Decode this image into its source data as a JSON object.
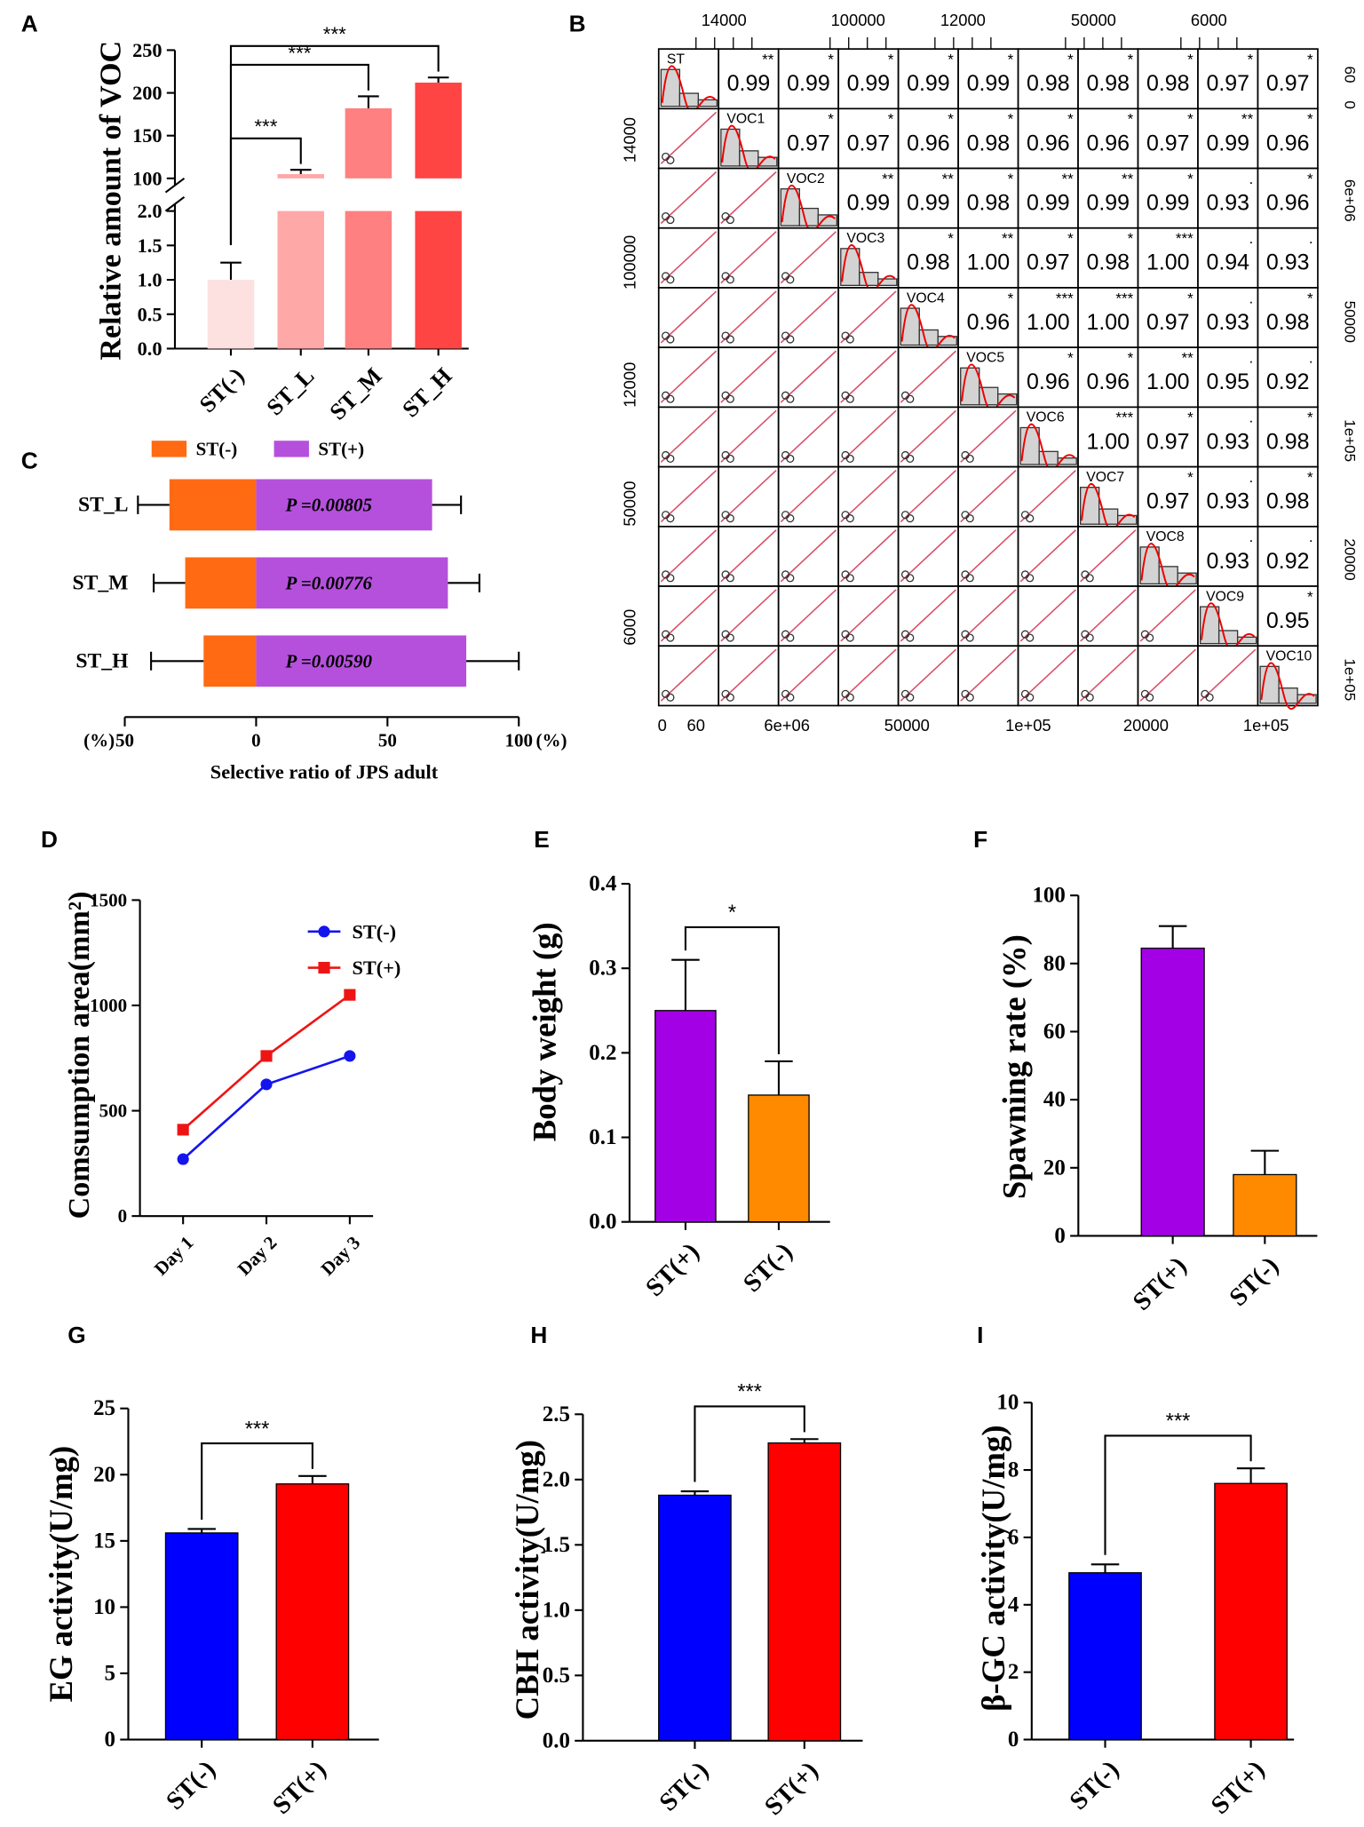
{
  "chart_data": [
    {
      "panel": "A",
      "type": "bar",
      "ylabel": "Relative amount of VOC",
      "categories": [
        "ST(-)",
        "ST_L",
        "ST_M",
        "ST_H"
      ],
      "values": [
        1.0,
        105,
        182,
        212
      ],
      "errors": [
        0.25,
        5,
        14,
        6
      ],
      "colors": [
        "#fde0e0",
        "#ffa8a8",
        "#ff8080",
        "#ff4444"
      ],
      "ylim": [
        0,
        250
      ],
      "axis_break": [
        2,
        100
      ],
      "yticks": [
        {
          "value": 0,
          "label": "0.0"
        },
        0.5,
        {
          "value": 1,
          "label": "1.0"
        },
        1.5,
        {
          "value": 2,
          "label": "2.0"
        },
        100,
        150,
        200,
        250
      ],
      "significance": [
        "***",
        "***",
        "***"
      ]
    },
    {
      "panel": "B",
      "type": "correlation_matrix",
      "variables": [
        "ST",
        "VOC1",
        "VOC2",
        "VOC3",
        "VOC4",
        "VOC5",
        "VOC6",
        "VOC7",
        "VOC8",
        "VOC9",
        "VOC10"
      ],
      "correlations": [
        [
          "0.99",
          "0.99",
          "0.99",
          "0.99",
          "0.99",
          "0.98",
          "0.98",
          "0.98",
          "0.97",
          "0.97"
        ],
        [
          "0.97",
          "0.97",
          "0.96",
          "0.98",
          "0.96",
          "0.96",
          "0.97",
          "0.99",
          "0.96"
        ],
        [
          "0.99",
          "0.99",
          "0.98",
          "0.99",
          "0.99",
          "0.99",
          "0.93",
          "0.96"
        ],
        [
          "0.98",
          "1.00",
          "0.97",
          "0.98",
          "1.00",
          "0.94",
          "0.93"
        ],
        [
          "0.96",
          "1.00",
          "1.00",
          "0.97",
          "0.93",
          "0.98"
        ],
        [
          "0.96",
          "0.96",
          "1.00",
          "0.95",
          "0.92"
        ],
        [
          "1.00",
          "0.97",
          "0.93",
          "0.98"
        ],
        [
          "0.97",
          "0.93",
          "0.98"
        ],
        [
          "0.93",
          "0.92"
        ],
        [
          "0.95"
        ]
      ],
      "significance": [
        [
          "**",
          "*",
          "*",
          "*",
          "*",
          "*",
          "*",
          "*",
          "*",
          "*"
        ],
        [
          "*",
          "*",
          "*",
          "*",
          "*",
          "*",
          "*",
          "**",
          "*"
        ],
        [
          "**",
          "**",
          "*",
          "**",
          "**",
          "*",
          ".",
          "*"
        ],
        [
          "*",
          "**",
          "*",
          "*",
          "***",
          ".",
          "."
        ],
        [
          "*",
          "***",
          "***",
          "*",
          ".",
          "*"
        ],
        [
          "*",
          "*",
          "**",
          ".",
          "."
        ],
        [
          "***",
          "*",
          ".",
          "*"
        ],
        [
          "*",
          ".",
          "*"
        ],
        [
          ".",
          "."
        ],
        [
          "*"
        ]
      ],
      "top_labels": [
        "14000",
        "100000",
        "12000",
        "50000",
        "6000"
      ],
      "left_labels": [
        "14000",
        "100000",
        "12000",
        "50000",
        "6000"
      ],
      "right_labels": [
        "60",
        "0",
        "6e+06",
        "50000",
        "1e+05",
        "20000",
        "1e+05"
      ],
      "bottom_labels": [
        "0",
        "60",
        "6e+06",
        "50000",
        "1e+05",
        "20000",
        "1e+05"
      ]
    },
    {
      "panel": "C",
      "type": "diverging_bar",
      "xlabel": "Selective ratio of JPS adult",
      "categories": [
        "ST_L",
        "ST_M",
        "ST_H"
      ],
      "series": [
        {
          "name": "ST(-)",
          "color": "#ff6a13",
          "values": [
            -33,
            -27,
            -20
          ],
          "errors": [
            12,
            12,
            20
          ]
        },
        {
          "name": "ST(+)",
          "color": "#b550dd",
          "values": [
            67,
            73,
            80
          ],
          "errors": [
            11,
            12,
            20
          ]
        }
      ],
      "annotations": [
        "P =0.00805",
        "P =0.00776",
        "P =0.00590"
      ],
      "xlim": [
        -50,
        100
      ],
      "xticks": [
        {
          "value": -50,
          "label": "50"
        },
        0,
        50,
        100
      ],
      "xunit": "(%)"
    },
    {
      "panel": "D",
      "type": "line",
      "ylabel": "Comsumption area(mm²)",
      "categories": [
        "Day 1",
        "Day 2",
        "Day 3"
      ],
      "series": [
        {
          "name": "ST(-)",
          "color": "#1414ee",
          "marker": "circle",
          "values": [
            270,
            625,
            760
          ]
        },
        {
          "name": "ST(+)",
          "color": "#ee1414",
          "marker": "square",
          "values": [
            410,
            760,
            1050
          ]
        }
      ],
      "ylim": [
        0,
        1500
      ],
      "yticks": [
        0,
        500,
        1000,
        1500
      ]
    },
    {
      "panel": "E",
      "type": "bar",
      "ylabel": "Body weight (g)",
      "categories": [
        "ST(+)",
        "ST(-)"
      ],
      "values": [
        0.25,
        0.15
      ],
      "errors": [
        0.06,
        0.04
      ],
      "colors": [
        "#a400e6",
        "#ff8a00"
      ],
      "ylim": [
        0,
        0.4
      ],
      "yticks": [
        {
          "value": 0,
          "label": "0.0"
        },
        0.1,
        0.2,
        0.3,
        0.4
      ],
      "significance": "*"
    },
    {
      "panel": "F",
      "type": "bar",
      "ylabel": "Spawning rate (%)",
      "categories": [
        "ST(+)",
        "ST(-)"
      ],
      "values": [
        84.5,
        18
      ],
      "errors": [
        6.5,
        7
      ],
      "colors": [
        "#a400e6",
        "#ff8a00"
      ],
      "ylim": [
        0,
        100
      ],
      "yticks": [
        0,
        20,
        40,
        60,
        80,
        100
      ]
    },
    {
      "panel": "G",
      "type": "bar",
      "ylabel": "EG activity(U/mg)",
      "categories": [
        "ST(-)",
        "ST(+)"
      ],
      "values": [
        15.6,
        19.3
      ],
      "errors": [
        0.3,
        0.6
      ],
      "colors": [
        "#0000ff",
        "#ff0000"
      ],
      "ylim": [
        0,
        25
      ],
      "yticks": [
        0,
        5,
        10,
        15,
        20,
        25
      ],
      "significance": "***"
    },
    {
      "panel": "H",
      "type": "bar",
      "ylabel": "CBH activity(U/mg)",
      "categories": [
        "ST(-)",
        "ST(+)"
      ],
      "values": [
        1.88,
        2.28
      ],
      "errors": [
        0.03,
        0.03
      ],
      "colors": [
        "#0000ff",
        "#ff0000"
      ],
      "ylim": [
        0,
        2.5
      ],
      "yticks": [
        {
          "value": 0,
          "label": "0.0"
        },
        0.5,
        {
          "value": 1,
          "label": "1.0"
        },
        1.5,
        {
          "value": 2,
          "label": "2.0"
        },
        2.5
      ],
      "significance": "***"
    },
    {
      "panel": "I",
      "type": "bar",
      "ylabel": "β-GC activity(U/mg)",
      "categories": [
        "ST(-)",
        "ST(+)"
      ],
      "values": [
        4.95,
        7.6
      ],
      "errors": [
        0.25,
        0.45
      ],
      "colors": [
        "#0000ff",
        "#ff0000"
      ],
      "ylim": [
        0,
        10
      ],
      "yticks": [
        0,
        2,
        4,
        6,
        8,
        10
      ],
      "significance": "***"
    }
  ]
}
